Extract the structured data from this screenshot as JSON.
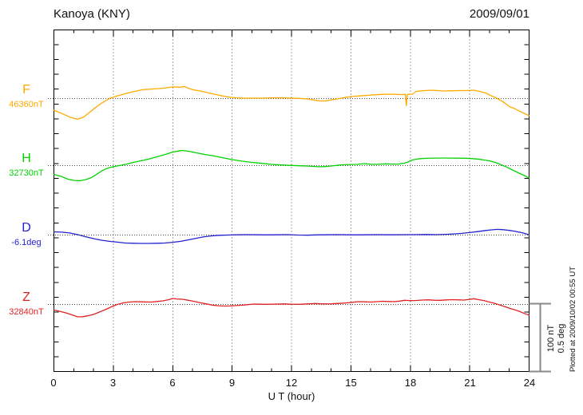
{
  "header": {
    "station": "Kanoya (KNY)",
    "date": "2009/09/01"
  },
  "x_axis": {
    "label": "U T (hour)",
    "ticks": [
      "0",
      "3",
      "6",
      "9",
      "12",
      "15",
      "18",
      "21",
      "24"
    ]
  },
  "channels": [
    {
      "letter": "F",
      "base": "46360nT",
      "color": "#ffaa00"
    },
    {
      "letter": "H",
      "base": "32730nT",
      "color": "#00d300"
    },
    {
      "letter": "D",
      "base": "-6.1deg",
      "color": "#2222d0"
    },
    {
      "letter": "Z",
      "base": "32840nT",
      "color": "#e02222"
    }
  ],
  "scale_bar": {
    "line1": "100 nT",
    "line2": "0.5 deg"
  },
  "footer_note": "Plotted at 2009/10/02 00:55 UT",
  "chart_data": {
    "type": "line",
    "title": "Kanoya (KNY) magnetogram 2009/09/01",
    "xlabel": "U T (hour)",
    "x_range": [
      0,
      24
    ],
    "x_tick_step": 3,
    "grid": "vertical dotted at 3h, dotted baseline per channel",
    "scale_bar": {
      "nT": 100,
      "deg": 0.5
    },
    "series": [
      {
        "name": "F",
        "baseline_value": "46360nT",
        "unit": "nT",
        "color": "#ffaa00",
        "points": [
          [
            0,
            -17
          ],
          [
            0.5,
            -23
          ],
          [
            0.9,
            -28
          ],
          [
            1.2,
            -30
          ],
          [
            1.5,
            -27
          ],
          [
            1.8,
            -20
          ],
          [
            2.1,
            -13
          ],
          [
            2.4,
            -7
          ],
          [
            2.8,
            0
          ],
          [
            3.2,
            4
          ],
          [
            3.6,
            7
          ],
          [
            4,
            10
          ],
          [
            4.5,
            13
          ],
          [
            5,
            14
          ],
          [
            5.5,
            15
          ],
          [
            6,
            17
          ],
          [
            6.3,
            16.5
          ],
          [
            6.6,
            17.5
          ],
          [
            6.8,
            15
          ],
          [
            7,
            13
          ],
          [
            7.5,
            10.5
          ],
          [
            8,
            7
          ],
          [
            8.4,
            4.5
          ],
          [
            8.8,
            2.3
          ],
          [
            9.2,
            1
          ],
          [
            9.6,
            0.6
          ],
          [
            10,
            0.6
          ],
          [
            10.5,
            0.6
          ],
          [
            11,
            1
          ],
          [
            11.5,
            1.2
          ],
          [
            12,
            0.6
          ],
          [
            12.4,
            0.2
          ],
          [
            12.8,
            -0.6
          ],
          [
            13.1,
            -2
          ],
          [
            13.4,
            -3.2
          ],
          [
            13.7,
            -3.5
          ],
          [
            14,
            -2
          ],
          [
            14.3,
            -0.6
          ],
          [
            14.7,
            1.5
          ],
          [
            15,
            2.9
          ],
          [
            15.4,
            3.8
          ],
          [
            15.8,
            4.7
          ],
          [
            16.2,
            5.5
          ],
          [
            16.6,
            6.2
          ],
          [
            17,
            6.4
          ],
          [
            17.3,
            6
          ],
          [
            17.6,
            5.8
          ],
          [
            17.75,
            6
          ],
          [
            17.8,
            -10.5
          ],
          [
            17.85,
            6
          ],
          [
            18.1,
            6.4
          ],
          [
            18.3,
            10.5
          ],
          [
            18.6,
            11.3
          ],
          [
            19,
            12.2
          ],
          [
            19.4,
            11.6
          ],
          [
            19.7,
            11
          ],
          [
            20,
            11.3
          ],
          [
            20.4,
            11.6
          ],
          [
            20.8,
            11.6
          ],
          [
            21.2,
            12.2
          ],
          [
            21.5,
            10.5
          ],
          [
            21.8,
            8.1
          ],
          [
            22.1,
            4
          ],
          [
            22.4,
            0
          ],
          [
            22.7,
            -5
          ],
          [
            23,
            -11.6
          ],
          [
            23.3,
            -15
          ],
          [
            23.6,
            -19.5
          ],
          [
            24,
            -25
          ]
        ]
      },
      {
        "name": "H",
        "baseline_value": "32730nT",
        "unit": "nT",
        "color": "#00d300",
        "points": [
          [
            0,
            -12.8
          ],
          [
            0.4,
            -16
          ],
          [
            0.7,
            -19.8
          ],
          [
            1,
            -21.5
          ],
          [
            1.3,
            -22.1
          ],
          [
            1.6,
            -20.5
          ],
          [
            1.9,
            -17.4
          ],
          [
            2.2,
            -12
          ],
          [
            2.4,
            -8.1
          ],
          [
            2.6,
            -5
          ],
          [
            2.8,
            -2.9
          ],
          [
            3.1,
            -1
          ],
          [
            3.3,
            0
          ],
          [
            3.7,
            2.3
          ],
          [
            4,
            4.7
          ],
          [
            4.4,
            7
          ],
          [
            4.8,
            9.5
          ],
          [
            5.2,
            12.8
          ],
          [
            5.6,
            16
          ],
          [
            6,
            19.8
          ],
          [
            6.3,
            21.3
          ],
          [
            6.5,
            22.1
          ],
          [
            6.8,
            20.9
          ],
          [
            7.2,
            18.6
          ],
          [
            7.6,
            16.3
          ],
          [
            8,
            14.5
          ],
          [
            8.5,
            11.6
          ],
          [
            9,
            8.7
          ],
          [
            9.5,
            6.5
          ],
          [
            10,
            4.7
          ],
          [
            10.5,
            3.2
          ],
          [
            11,
            1.7
          ],
          [
            11.5,
            0.9
          ],
          [
            12,
            0.2
          ],
          [
            12.4,
            -0.2
          ],
          [
            12.8,
            -0.6
          ],
          [
            13.1,
            -1.2
          ],
          [
            13.4,
            -1.7
          ],
          [
            13.7,
            -1.4
          ],
          [
            14,
            -0.6
          ],
          [
            14.3,
            0.3
          ],
          [
            14.6,
            1.2
          ],
          [
            15,
            1.6
          ],
          [
            15.3,
            1.7
          ],
          [
            15.7,
            2.9
          ],
          [
            16,
            2
          ],
          [
            16.2,
            1.7
          ],
          [
            16.5,
            2.2
          ],
          [
            16.8,
            2.6
          ],
          [
            17.1,
            2.2
          ],
          [
            17.4,
            2.3
          ],
          [
            17.7,
            3.5
          ],
          [
            17.9,
            5.5
          ],
          [
            18.1,
            8.1
          ],
          [
            18.3,
            9.3
          ],
          [
            18.5,
            10.1
          ],
          [
            18.8,
            10.6
          ],
          [
            19.2,
            10.9
          ],
          [
            19.6,
            11
          ],
          [
            20,
            10.9
          ],
          [
            20.4,
            10.8
          ],
          [
            20.8,
            10.7
          ],
          [
            21.1,
            10.2
          ],
          [
            21.4,
            9.5
          ],
          [
            21.7,
            8.2
          ],
          [
            22,
            7
          ],
          [
            22.3,
            4.5
          ],
          [
            22.6,
            1
          ],
          [
            22.9,
            -2.5
          ],
          [
            23.2,
            -7
          ],
          [
            23.5,
            -11
          ],
          [
            23.8,
            -15
          ],
          [
            24,
            -18
          ]
        ]
      },
      {
        "name": "D",
        "baseline_value": "-6.1deg",
        "unit": "deg",
        "color": "#2222d0",
        "points": [
          [
            0,
            0.023
          ],
          [
            0.4,
            0.021
          ],
          [
            0.8,
            0.015
          ],
          [
            1.2,
            0.003
          ],
          [
            1.6,
            -0.012
          ],
          [
            2,
            -0.026
          ],
          [
            2.4,
            -0.038
          ],
          [
            2.8,
            -0.046
          ],
          [
            3.2,
            -0.052
          ],
          [
            3.6,
            -0.058
          ],
          [
            4,
            -0.06
          ],
          [
            4.4,
            -0.061
          ],
          [
            4.8,
            -0.061
          ],
          [
            5.2,
            -0.06
          ],
          [
            5.6,
            -0.058
          ],
          [
            6,
            -0.053
          ],
          [
            6.4,
            -0.046
          ],
          [
            6.8,
            -0.035
          ],
          [
            7.2,
            -0.023
          ],
          [
            7.6,
            -0.012
          ],
          [
            8,
            -0.006
          ],
          [
            8.4,
            -0.002
          ],
          [
            8.8,
            0
          ],
          [
            9.3,
            0.002
          ],
          [
            9.8,
            0.003
          ],
          [
            10.3,
            0.002
          ],
          [
            10.8,
            0.001
          ],
          [
            11.3,
            0.002
          ],
          [
            11.8,
            0.003
          ],
          [
            12.3,
            0
          ],
          [
            12.8,
            -0.001
          ],
          [
            13.3,
            0.001
          ],
          [
            13.8,
            0.002
          ],
          [
            14.3,
            0.003
          ],
          [
            14.8,
            0.002
          ],
          [
            15.3,
            0.001
          ],
          [
            15.8,
            0.002
          ],
          [
            16.3,
            0.003
          ],
          [
            16.8,
            0.002
          ],
          [
            17.3,
            0.002
          ],
          [
            17.8,
            0.003
          ],
          [
            18.3,
            0.003
          ],
          [
            18.8,
            0.004
          ],
          [
            19.3,
            0.003
          ],
          [
            19.8,
            0.005
          ],
          [
            20.2,
            0.008
          ],
          [
            20.6,
            0.012
          ],
          [
            21,
            0.018
          ],
          [
            21.4,
            0.025
          ],
          [
            21.8,
            0.033
          ],
          [
            22.1,
            0.038
          ],
          [
            22.4,
            0.041
          ],
          [
            22.7,
            0.039
          ],
          [
            23,
            0.034
          ],
          [
            23.3,
            0.027
          ],
          [
            23.6,
            0.018
          ],
          [
            23.8,
            0.011
          ],
          [
            24,
            0.002
          ]
        ]
      },
      {
        "name": "Z",
        "baseline_value": "32840nT",
        "unit": "nT",
        "color": "#e02222",
        "points": [
          [
            0,
            -8.1
          ],
          [
            0.3,
            -10
          ],
          [
            0.6,
            -12.2
          ],
          [
            0.9,
            -15
          ],
          [
            1.2,
            -18
          ],
          [
            1.45,
            -17.8
          ],
          [
            1.7,
            -16.5
          ],
          [
            2,
            -14.5
          ],
          [
            2.3,
            -11
          ],
          [
            2.6,
            -7.5
          ],
          [
            2.9,
            -3.5
          ],
          [
            3.2,
            0
          ],
          [
            3.5,
            2.3
          ],
          [
            3.8,
            3.5
          ],
          [
            4.1,
            4.1
          ],
          [
            4.5,
            3.7
          ],
          [
            4.9,
            3.5
          ],
          [
            5.2,
            4.3
          ],
          [
            5.5,
            5.2
          ],
          [
            5.8,
            7
          ],
          [
            6,
            8.7
          ],
          [
            6.2,
            8
          ],
          [
            6.5,
            7.6
          ],
          [
            6.8,
            6
          ],
          [
            7.1,
            4.3
          ],
          [
            7.4,
            2.5
          ],
          [
            7.7,
            0.8
          ],
          [
            8,
            -0.9
          ],
          [
            8.3,
            -1.9
          ],
          [
            8.6,
            -2.3
          ],
          [
            8.9,
            -2.2
          ],
          [
            9.2,
            -1.6
          ],
          [
            9.5,
            -1
          ],
          [
            9.8,
            -0.2
          ],
          [
            10.1,
            0.6
          ],
          [
            10.4,
            0.3
          ],
          [
            10.8,
            0.2
          ],
          [
            11.2,
            0.6
          ],
          [
            11.6,
            0.8
          ],
          [
            12,
            0.3
          ],
          [
            12.4,
            0.2
          ],
          [
            12.8,
            0.8
          ],
          [
            13.2,
            1.4
          ],
          [
            13.6,
            0.8
          ],
          [
            14,
            0.9
          ],
          [
            14.4,
            1.5
          ],
          [
            14.8,
            2.3
          ],
          [
            15.1,
            3.2
          ],
          [
            15.4,
            4.1
          ],
          [
            15.7,
            3.8
          ],
          [
            16,
            3.5
          ],
          [
            16.3,
            4.1
          ],
          [
            16.6,
            4.7
          ],
          [
            16.9,
            4.3
          ],
          [
            17.2,
            4.1
          ],
          [
            17.5,
            5
          ],
          [
            17.7,
            6
          ],
          [
            18,
            5.6
          ],
          [
            18.3,
            5.8
          ],
          [
            18.6,
            6.4
          ],
          [
            18.9,
            6.7
          ],
          [
            19.2,
            6.2
          ],
          [
            19.5,
            6
          ],
          [
            19.8,
            6.6
          ],
          [
            20.1,
            7
          ],
          [
            20.4,
            6.7
          ],
          [
            20.7,
            6.4
          ],
          [
            21,
            7.5
          ],
          [
            21.2,
            8.4
          ],
          [
            21.45,
            7
          ],
          [
            21.7,
            5.8
          ],
          [
            22,
            3.5
          ],
          [
            22.25,
            1.7
          ],
          [
            22.5,
            -0.6
          ],
          [
            22.75,
            -2.9
          ],
          [
            23,
            -5.5
          ],
          [
            23.25,
            -7.6
          ],
          [
            23.5,
            -9.9
          ],
          [
            23.75,
            -13
          ],
          [
            24,
            -15.7
          ]
        ]
      }
    ]
  }
}
